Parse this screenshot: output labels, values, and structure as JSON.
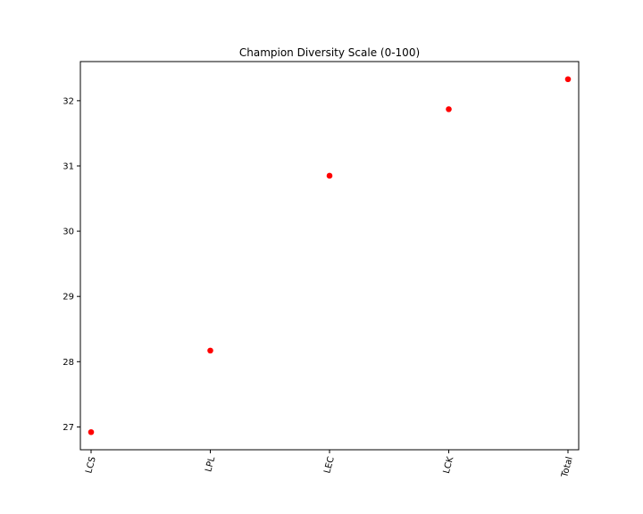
{
  "chart_data": {
    "type": "scatter",
    "title": "Champion Diversity Scale (0-100)",
    "xlabel": "",
    "ylabel": "",
    "categories": [
      "LCS",
      "LPL",
      "LEC",
      "LCK",
      "Total"
    ],
    "series": [
      {
        "values": [
          26.92,
          28.17,
          30.85,
          31.87,
          32.33
        ]
      }
    ],
    "ylim": [
      26.65,
      32.6
    ],
    "yticks": [
      27,
      28,
      29,
      30,
      31,
      32
    ],
    "xtick_rotation_deg": -75,
    "marker_color": "#ff0000",
    "grid": false,
    "legend": "none"
  }
}
